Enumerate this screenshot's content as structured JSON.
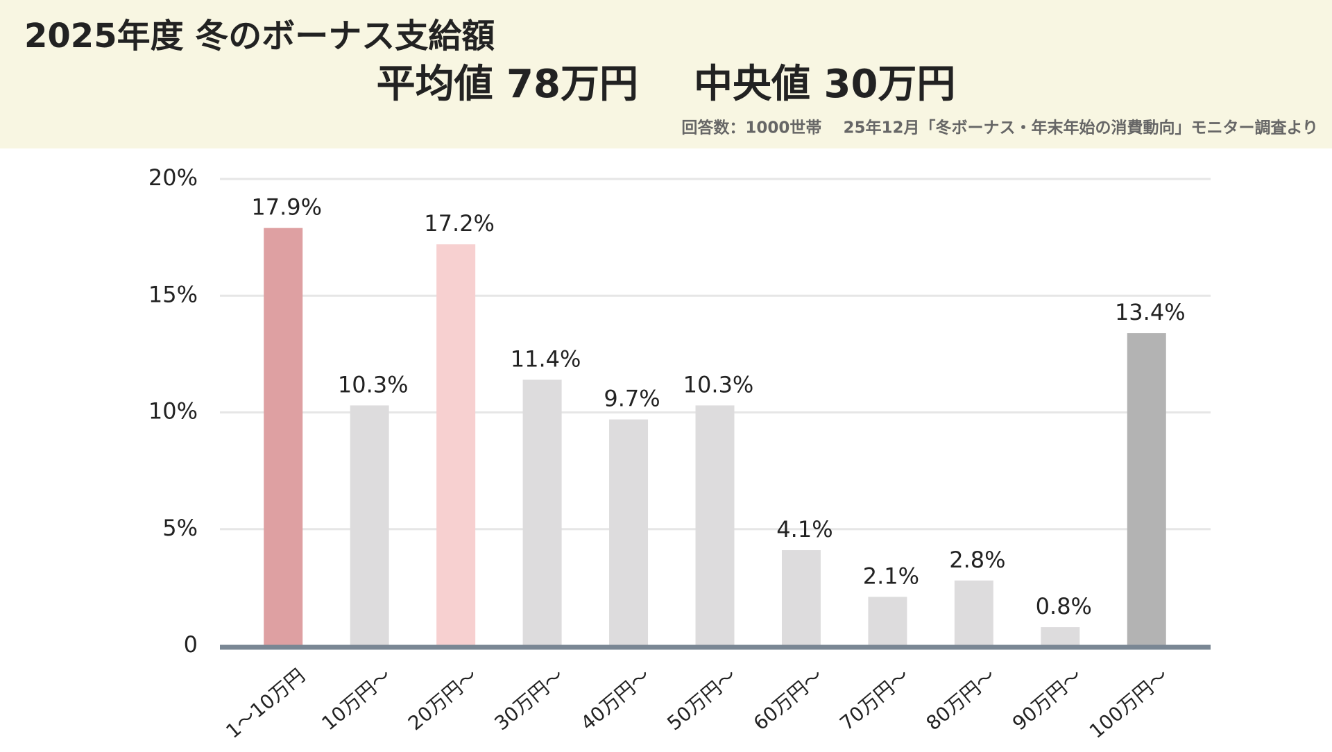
{
  "header": {
    "title": "2025年度 冬のボーナス支給額",
    "mean": "平均値 78万円",
    "median": "中央値 30万円",
    "note": "回答数：1000世帯　 25年12月「冬ボーナス・年末年始の消費動向」モニター調査より"
  },
  "chart_data": {
    "type": "bar",
    "categories": [
      "1～10万円",
      "10万円～",
      "20万円～",
      "30万円～",
      "40万円～",
      "50万円～",
      "60万円～",
      "70万円～",
      "80万円～",
      "90万円～",
      "100万円～"
    ],
    "values": [
      17.9,
      10.3,
      17.2,
      11.4,
      9.7,
      10.3,
      4.1,
      2.1,
      2.8,
      0.8,
      13.4
    ],
    "value_labels": [
      "17.9%",
      "10.3%",
      "17.2%",
      "11.4%",
      "9.7%",
      "10.3%",
      "4.1%",
      "2.1%",
      "2.8%",
      "0.8%",
      "13.4%"
    ],
    "colors": [
      "#dea0a2",
      "#dddcdd",
      "#f7d0d0",
      "#dddcdd",
      "#dddcdd",
      "#dddcdd",
      "#dddcdd",
      "#dddcdd",
      "#dddcdd",
      "#dddcdd",
      "#b3b3b3"
    ],
    "ylim": [
      0,
      20
    ],
    "yticks": [
      0,
      {
        "value": 5,
        "label": "5%"
      },
      {
        "value": 10,
        "label": "10%"
      },
      {
        "value": 15,
        "label": "15%"
      },
      {
        "value": 20,
        "label": "20%"
      }
    ],
    "grid": true
  }
}
